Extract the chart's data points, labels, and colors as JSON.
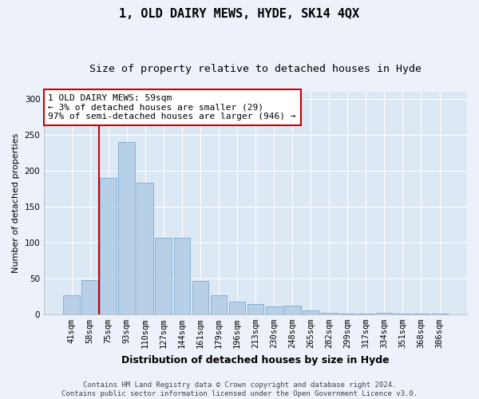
{
  "title": "1, OLD DAIRY MEWS, HYDE, SK14 4QX",
  "subtitle": "Size of property relative to detached houses in Hyde",
  "xlabel": "Distribution of detached houses by size in Hyde",
  "ylabel": "Number of detached properties",
  "categories": [
    "41sqm",
    "58sqm",
    "75sqm",
    "93sqm",
    "110sqm",
    "127sqm",
    "144sqm",
    "161sqm",
    "179sqm",
    "196sqm",
    "213sqm",
    "230sqm",
    "248sqm",
    "265sqm",
    "282sqm",
    "299sqm",
    "317sqm",
    "334sqm",
    "351sqm",
    "368sqm",
    "386sqm"
  ],
  "values": [
    27,
    48,
    190,
    240,
    183,
    107,
    107,
    47,
    27,
    18,
    14,
    11,
    12,
    5,
    2,
    1,
    1,
    2,
    1,
    1,
    1
  ],
  "bar_color": "#b8cfe8",
  "bar_edge_color": "#7aaad0",
  "annotation_text": "1 OLD DAIRY MEWS: 59sqm\n← 3% of detached houses are smaller (29)\n97% of semi-detached houses are larger (946) →",
  "annotation_box_color": "#ffffff",
  "annotation_box_edge_color": "#cc0000",
  "vline_color": "#cc0000",
  "vline_x": 1.5,
  "background_color": "#dde8f5",
  "grid_color": "#ffffff",
  "fig_background_color": "#edf2fa",
  "ylim": [
    0,
    310
  ],
  "yticks": [
    0,
    50,
    100,
    150,
    200,
    250,
    300
  ],
  "title_fontsize": 11,
  "subtitle_fontsize": 9.5,
  "xlabel_fontsize": 9,
  "ylabel_fontsize": 8,
  "tick_fontsize": 7.5,
  "annotation_fontsize": 8,
  "footer_fontsize": 6.5,
  "footer": "Contains HM Land Registry data © Crown copyright and database right 2024.\nContains public sector information licensed under the Open Government Licence v3.0."
}
